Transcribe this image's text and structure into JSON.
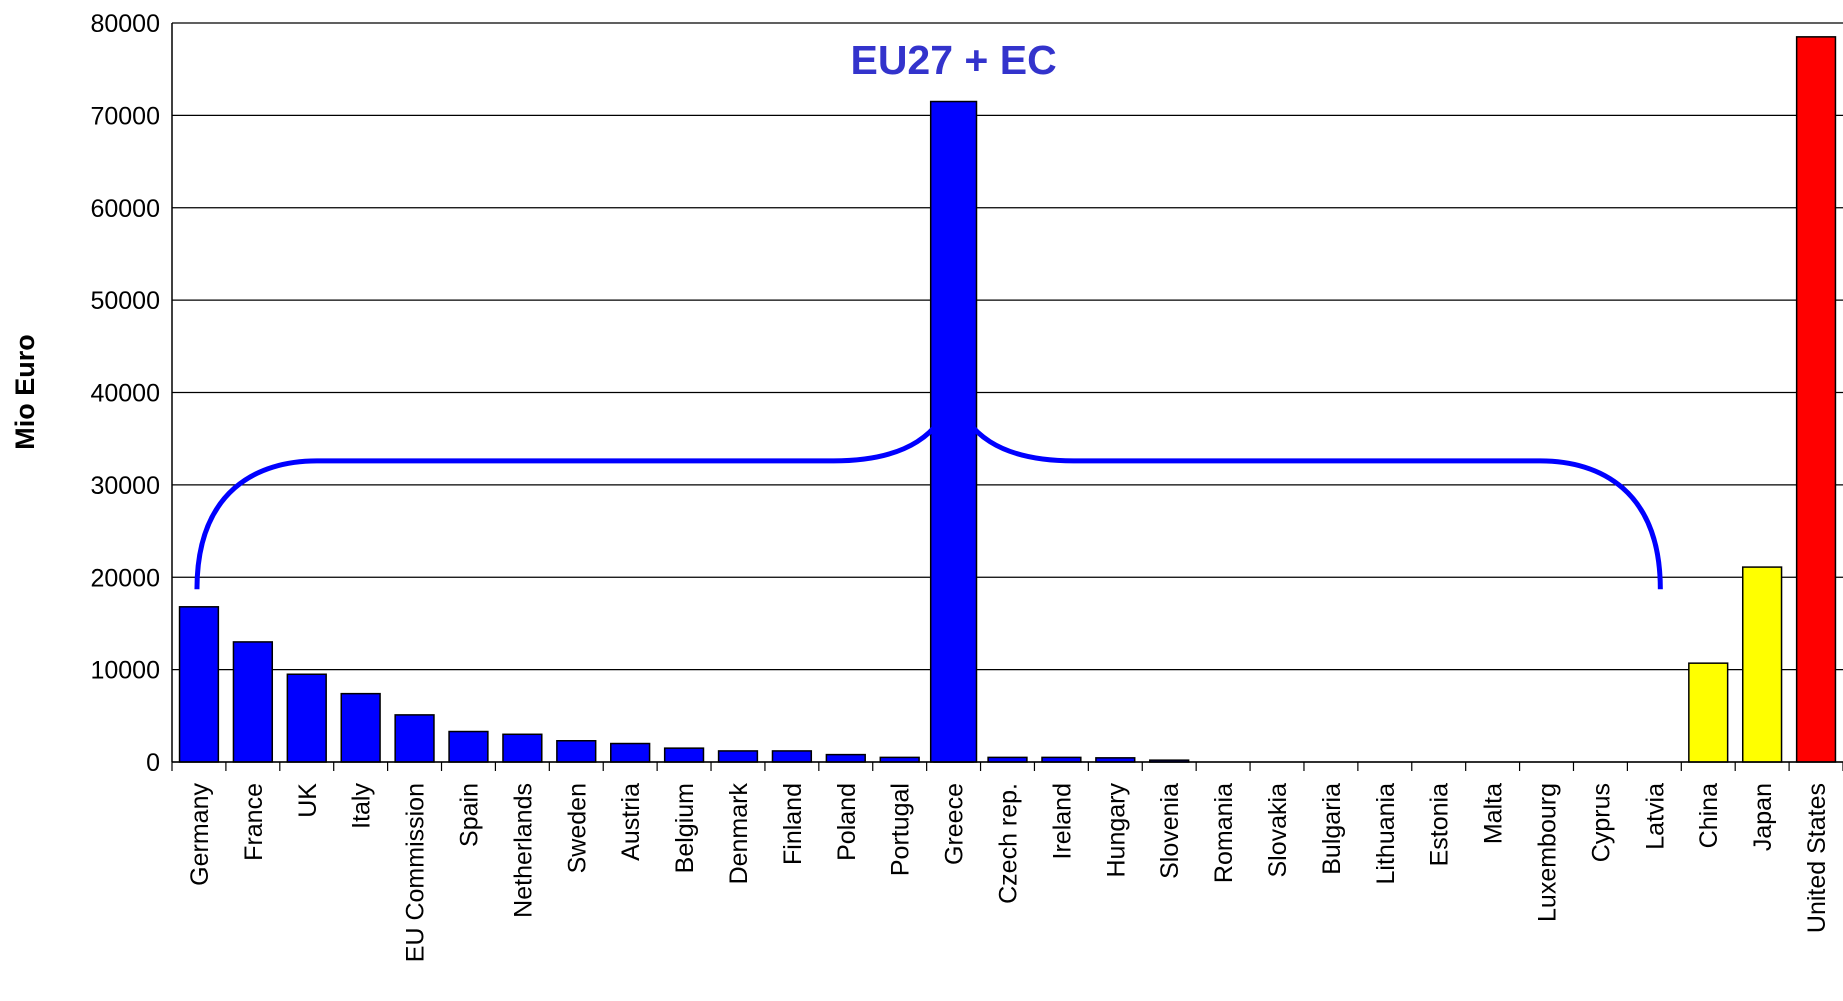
{
  "chart_data": {
    "type": "bar",
    "title": "",
    "xlabel": "",
    "ylabel": "Mio Euro",
    "ylim": [
      0,
      80000
    ],
    "yticks": [
      0,
      10000,
      20000,
      30000,
      40000,
      50000,
      60000,
      70000,
      80000
    ],
    "grid": true,
    "legend": "none",
    "annotation": "EU27 + EC",
    "categories": [
      "Germany",
      "France",
      "UK",
      "Italy",
      "EU Commission",
      "Spain",
      "Netherlands",
      "Sweden",
      "Austria",
      "Belgium",
      "Denmark",
      "Finland",
      "Poland",
      "Portugal",
      "Greece",
      "Czech rep.",
      "Ireland",
      "Hungary",
      "Slovenia",
      "Romania",
      "Slovakia",
      "Bulgaria",
      "Lithuania",
      "Estonia",
      "Malta",
      "Luxembourg",
      "Cyprus",
      "Latvia",
      "China",
      "Japan",
      "United States"
    ],
    "values": [
      16800,
      13000,
      9500,
      7400,
      5100,
      3300,
      3000,
      2300,
      2000,
      1500,
      1200,
      1200,
      800,
      500,
      500,
      500,
      500,
      450,
      200,
      0,
      0,
      0,
      0,
      0,
      0,
      0,
      0,
      0,
      10700,
      21100,
      78500
    ],
    "bar_colors": [
      "#0000ff",
      "#0000ff",
      "#0000ff",
      "#0000ff",
      "#0000ff",
      "#0000ff",
      "#0000ff",
      "#0000ff",
      "#0000ff",
      "#0000ff",
      "#0000ff",
      "#0000ff",
      "#0000ff",
      "#0000ff",
      "#0000ff",
      "#0000ff",
      "#0000ff",
      "#0000ff",
      "#0000ff",
      "#0000ff",
      "#0000ff",
      "#0000ff",
      "#0000ff",
      "#0000ff",
      "#0000ff",
      "#0000ff",
      "#0000ff",
      "#0000ff",
      "#ffff00",
      "#ffff00",
      "#ff0000"
    ],
    "total_bar": {
      "label": "EU27 + EC",
      "value": 71500,
      "color": "#0000ff"
    }
  }
}
